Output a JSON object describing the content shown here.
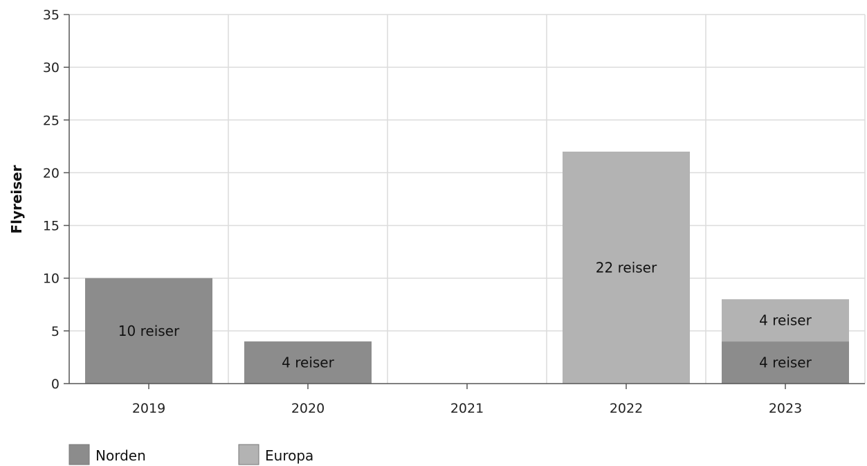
{
  "chart_data": {
    "type": "bar",
    "stacked": true,
    "categories": [
      "2019",
      "2020",
      "2021",
      "2022",
      "2023"
    ],
    "series": [
      {
        "name": "Norden",
        "values": [
          10,
          4,
          0,
          0,
          4
        ],
        "color": "#8c8c8c",
        "labels": [
          "10 reiser",
          "4 reiser",
          "",
          "",
          "4 reiser"
        ]
      },
      {
        "name": "Europa",
        "values": [
          0,
          0,
          0,
          22,
          4
        ],
        "color": "#b3b3b3",
        "labels": [
          "",
          "",
          "",
          "22 reiser",
          "4 reiser"
        ]
      }
    ],
    "title": "",
    "xlabel": "",
    "ylabel": "Flyreiser",
    "ylim": [
      0,
      35
    ],
    "yticks": [
      0,
      5,
      10,
      15,
      20,
      25,
      30,
      35
    ],
    "grid": true,
    "legend_position": "bottom-left"
  }
}
